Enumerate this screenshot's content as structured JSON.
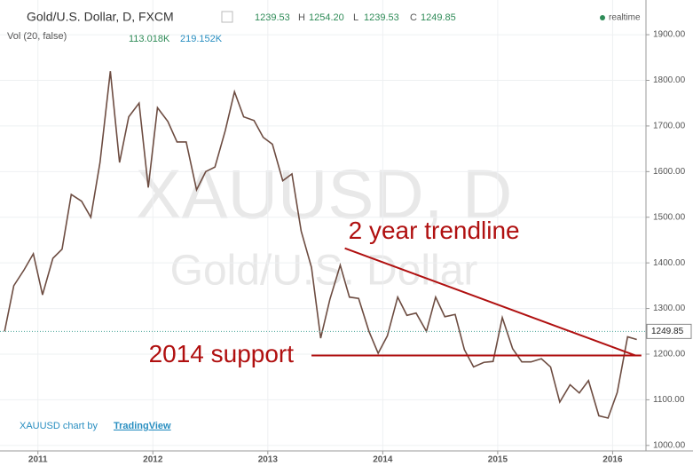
{
  "chart_data": {
    "type": "line",
    "title": "Gold/U.S. Dollar, D, FXCM",
    "ohlc": [
      "1239.53",
      "H",
      "1254.20",
      "L",
      "1239.53",
      "C",
      "1249.85"
    ],
    "volume_label": "Vol (20, false)",
    "volume_values": [
      "113.018K",
      "219.152K"
    ],
    "status": "realtime",
    "watermark": [
      "XAUUSD, D",
      "Gold/U.S. Dollar"
    ],
    "credit": [
      "XAUUSD chart by",
      "TradingView"
    ],
    "color": "#6d4c41",
    "x": [
      2010.71,
      2010.79,
      2010.88,
      2010.96,
      2011.04,
      2011.13,
      2011.21,
      2011.29,
      2011.38,
      2011.46,
      2011.54,
      2011.63,
      2011.71,
      2011.79,
      2011.88,
      2011.96,
      2012.04,
      2012.13,
      2012.21,
      2012.29,
      2012.38,
      2012.46,
      2012.54,
      2012.63,
      2012.71,
      2012.79,
      2012.88,
      2012.96,
      2013.04,
      2013.13,
      2013.21,
      2013.29,
      2013.38,
      2013.46,
      2013.54,
      2013.63,
      2013.71,
      2013.79,
      2013.88,
      2013.96,
      2014.04,
      2014.13,
      2014.21,
      2014.29,
      2014.38,
      2014.46,
      2014.54,
      2014.63,
      2014.71,
      2014.79,
      2014.88,
      2014.96,
      2015.04,
      2015.13,
      2015.21,
      2015.29,
      2015.38,
      2015.46,
      2015.54,
      2015.63,
      2015.71,
      2015.79,
      2015.88,
      2015.96,
      2016.04,
      2016.13,
      2016.21
    ],
    "values": [
      1250,
      1350,
      1385,
      1420,
      1330,
      1410,
      1430,
      1550,
      1535,
      1500,
      1620,
      1820,
      1620,
      1720,
      1750,
      1565,
      1740,
      1710,
      1665,
      1665,
      1560,
      1600,
      1610,
      1690,
      1775,
      1720,
      1712,
      1675,
      1660,
      1580,
      1595,
      1470,
      1390,
      1235,
      1320,
      1395,
      1325,
      1322,
      1250,
      1202,
      1240,
      1325,
      1285,
      1290,
      1250,
      1325,
      1282,
      1287,
      1210,
      1172,
      1182,
      1184,
      1280,
      1212,
      1183,
      1183,
      1190,
      1172,
      1095,
      1133,
      1115,
      1142,
      1065,
      1060,
      1116,
      1238,
      1232
    ],
    "last": {
      "value": 1249.85,
      "label": "1249.85"
    },
    "annotations": [
      {
        "label": "2 year trendline",
        "x": [
          2013.67,
          2016.2
        ],
        "values": [
          1432,
          1197
        ],
        "color": "#b01010"
      },
      {
        "label": "2014 support",
        "x": [
          2013.38,
          2016.25
        ],
        "values": [
          1197,
          1197
        ],
        "color": "#b01010"
      }
    ],
    "xlim": [
      2010.67,
      2016.29
    ],
    "xticks": [
      2011,
      2012,
      2013,
      2014,
      2015,
      2016
    ],
    "ylim": [
      988,
      1976
    ],
    "yticks": [
      {
        "value": 1000,
        "label": "1000.00"
      },
      {
        "value": 1100,
        "label": "1100.00"
      },
      {
        "value": 1200,
        "label": "1200.00"
      },
      {
        "value": 1300,
        "label": "1300.00"
      },
      {
        "value": 1400,
        "label": "1400.00"
      },
      {
        "value": 1500,
        "label": "1500.00"
      },
      {
        "value": 1600,
        "label": "1600.00"
      },
      {
        "value": 1700,
        "label": "1700.00"
      },
      {
        "value": 1800,
        "label": "1800.00"
      },
      {
        "value": 1900,
        "label": "1900.00"
      }
    ],
    "grid": true
  }
}
